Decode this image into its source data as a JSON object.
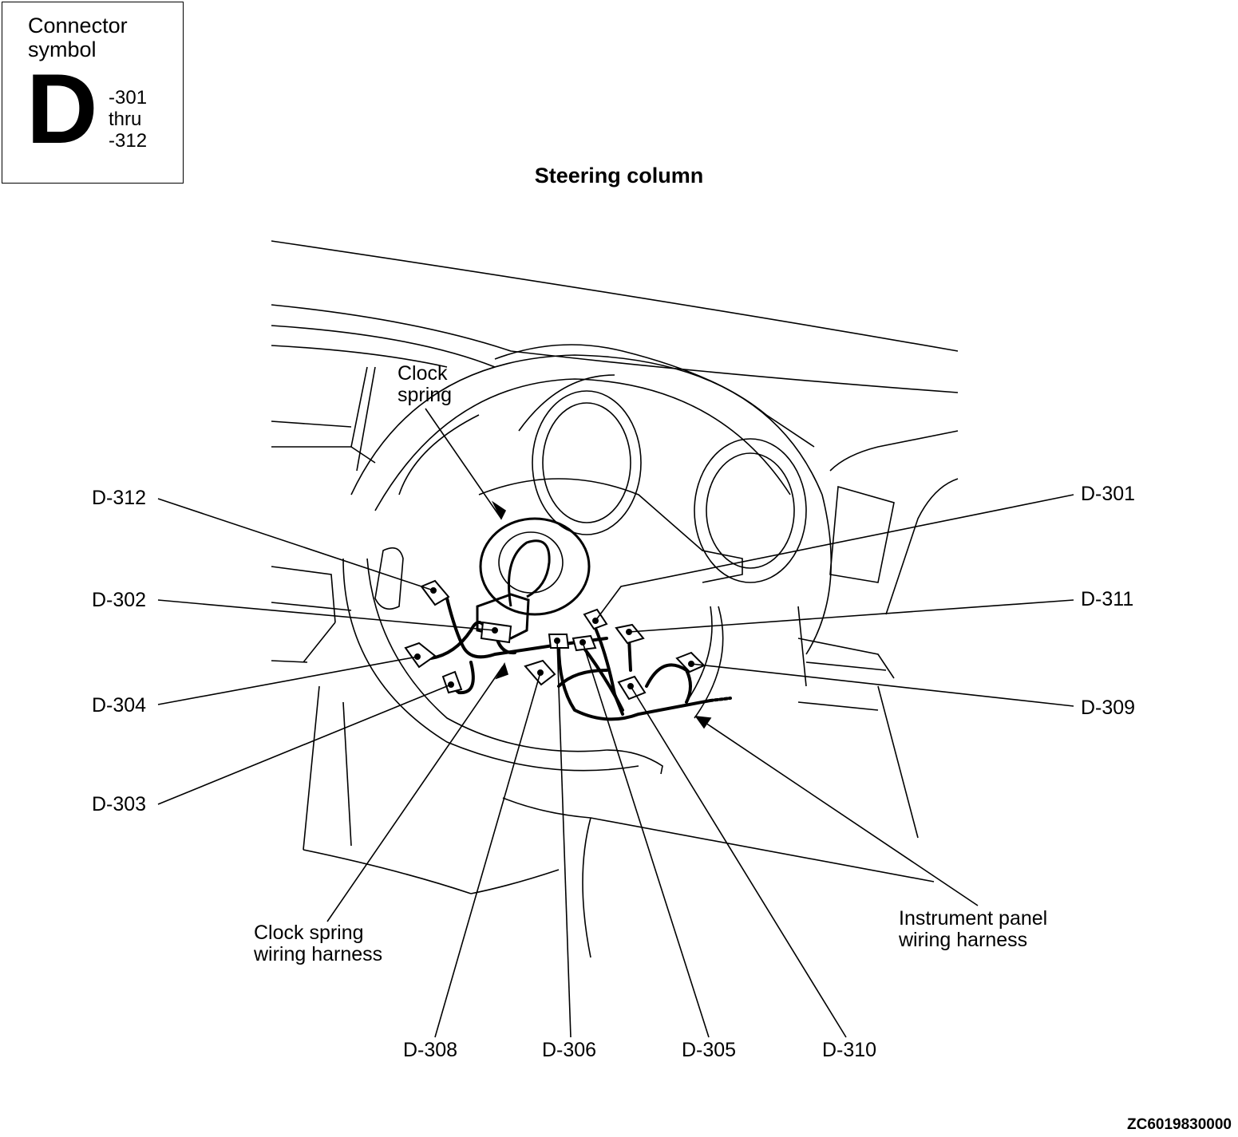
{
  "connector_symbol": {
    "caption_line1": "Connector",
    "caption_line2": "symbol",
    "letter": "D",
    "range_from": "-301",
    "range_word": "thru",
    "range_to": "-312"
  },
  "title": "Steering column",
  "labels": {
    "clock_spring_line1": "Clock",
    "clock_spring_line2": "spring",
    "d301": "D-301",
    "d302": "D-302",
    "d303": "D-303",
    "d304": "D-304",
    "d305": "D-305",
    "d306": "D-306",
    "d308": "D-308",
    "d309": "D-309",
    "d310": "D-310",
    "d311": "D-311",
    "d312": "D-312",
    "cs_harness_line1": "Clock spring",
    "cs_harness_line2": "wiring harness",
    "ip_harness_line1": "Instrument panel",
    "ip_harness_line2": "wiring harness"
  },
  "figure_code": "ZC6019830000"
}
